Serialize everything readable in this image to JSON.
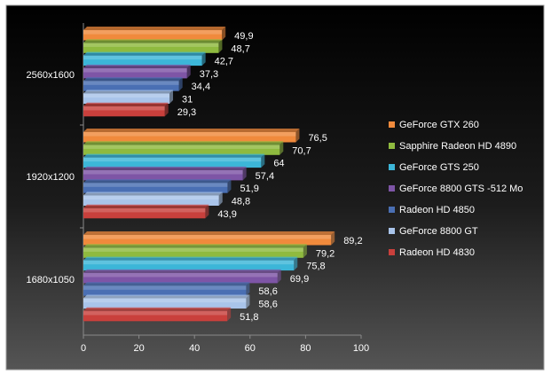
{
  "chart_data": {
    "type": "bar",
    "orientation": "horizontal",
    "title": "",
    "xlabel": "",
    "ylabel": "",
    "xlim": [
      0,
      100
    ],
    "x_ticks": [
      "0",
      "20",
      "40",
      "60",
      "80",
      "100"
    ],
    "grid": false,
    "legend_position": "right",
    "categories": [
      "2560x1600",
      "1920x1200",
      "1680x1050"
    ],
    "series": [
      {
        "name": "GeForce GTX 260",
        "color": "#f08a3c",
        "values": [
          49.9,
          76.5,
          89.2
        ],
        "labels": [
          "49,9",
          "76,5",
          "89,2"
        ]
      },
      {
        "name": "Sapphire Radeon HD 4890",
        "color": "#8fba3f",
        "values": [
          48.7,
          70.7,
          79.2
        ],
        "labels": [
          "48,7",
          "70,7",
          "79,2"
        ]
      },
      {
        "name": "GeForce GTS 250",
        "color": "#3cb6d8",
        "values": [
          42.7,
          64,
          75.8
        ],
        "labels": [
          "42,7",
          "64",
          "75,8"
        ]
      },
      {
        "name": "GeForce 8800 GTS -512 Mo",
        "color": "#7e55a6",
        "values": [
          37.3,
          57.4,
          69.9
        ],
        "labels": [
          "37,3",
          "57,4",
          "69,9"
        ]
      },
      {
        "name": "Radeon HD 4850",
        "color": "#4a6fb3",
        "values": [
          34.4,
          51.9,
          58.6
        ],
        "labels": [
          "34,4",
          "51,9",
          "58,6"
        ]
      },
      {
        "name": "GeForce 8800 GT",
        "color": "#a9c4ea",
        "values": [
          31,
          48.8,
          58.6
        ],
        "labels": [
          "31",
          "48,8",
          "58,6"
        ]
      },
      {
        "name": "Radeon HD 4830",
        "color": "#c9403c",
        "values": [
          29.3,
          43.9,
          51.8
        ],
        "labels": [
          "29,3",
          "43,9",
          "51,8"
        ]
      }
    ]
  }
}
